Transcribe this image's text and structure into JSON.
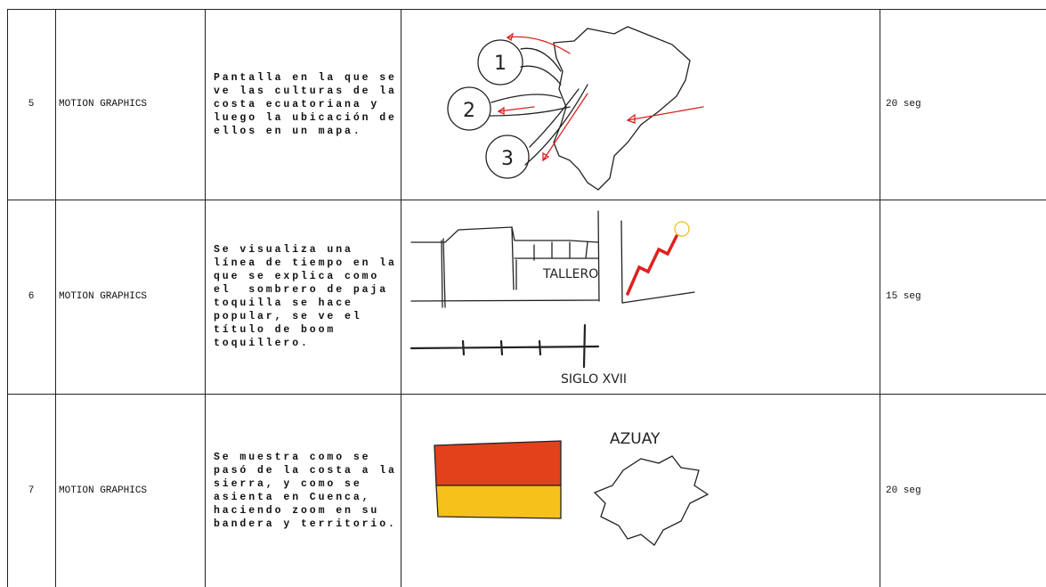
{
  "rows": [
    {
      "number": "5",
      "type": "MOTION GRAPHICS",
      "description": [
        "Pantalla en la que se",
        "ve las culturas de la",
        "costa ecuatoriana y",
        "luego la ubicación de",
        "ellos en un mapa."
      ],
      "duration": "20 seg",
      "sketch_labels": [
        "1",
        "2",
        "3"
      ]
    },
    {
      "number": "6",
      "type": "MOTION GRAPHICS",
      "description": [
        "Se visualiza una",
        "línea de tiempo en la",
        "que se explica como",
        "el  sombrero de paja",
        "toquilla se hace",
        "popular, se ve el",
        "título de boom",
        "toquillero."
      ],
      "duration": "15 seg",
      "sketch_labels": [
        "TALLERO",
        "SIGLO XVII"
      ]
    },
    {
      "number": "7",
      "type": "MOTION GRAPHICS",
      "description": [
        "Se muestra como se",
        "pasó de la costa a la",
        "sierra, y como se",
        "asienta en Cuenca,",
        "haciendo zoom en su",
        "bandera y territorio."
      ],
      "duration": "20 seg",
      "sketch_labels": [
        "AZUAY"
      ]
    }
  ]
}
